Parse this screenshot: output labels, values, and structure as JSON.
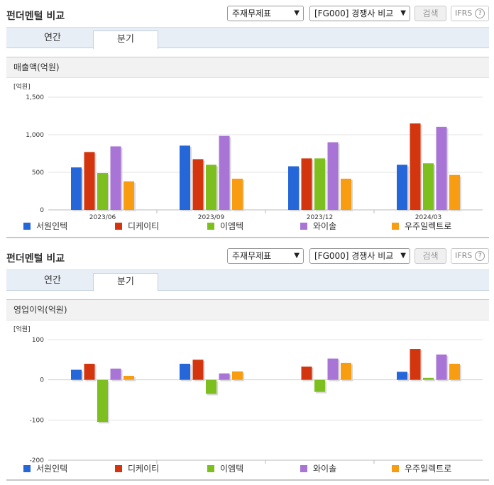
{
  "series_colors": [
    "#2566d8",
    "#d3360f",
    "#7dbf1e",
    "#a874d6",
    "#f89c12"
  ],
  "panels": [
    {
      "title": "펀더멘털 비교",
      "select1": "주재무제표",
      "select2": "[FG000] 경쟁사 비교",
      "search_label": "검색",
      "ifrs_label": "IFRS",
      "tabs": [
        "연간",
        "분기"
      ],
      "section_label": "매출액(억원)",
      "unit_label": "[억원]",
      "chart_data": {
        "type": "bar",
        "title": "매출액(억원)",
        "categories": [
          "2023/06",
          "2023/09",
          "2023/12",
          "2024/03"
        ],
        "series": [
          {
            "name": "서원인텍",
            "values": [
              565,
              855,
              580,
              600
            ]
          },
          {
            "name": "디케이티",
            "values": [
              770,
              675,
              685,
              1150
            ]
          },
          {
            "name": "이엠텍",
            "values": [
              490,
              600,
              685,
              620
            ]
          },
          {
            "name": "와이솔",
            "values": [
              845,
              985,
              900,
              1105
            ]
          },
          {
            "name": "우주일렉트로",
            "values": [
              380,
              415,
              415,
              465
            ]
          }
        ],
        "ylim": [
          0,
          1500
        ],
        "yticks": [
          0,
          500,
          1000,
          1500
        ],
        "ytick_labels": [
          "0",
          "500",
          "1,000",
          "1,500"
        ],
        "grid": true,
        "legend": "bottom"
      }
    },
    {
      "title": "펀더멘털 비교",
      "select1": "주재무제표",
      "select2": "[FG000] 경쟁사 비교",
      "search_label": "검색",
      "ifrs_label": "IFRS",
      "tabs": [
        "연간",
        "분기"
      ],
      "section_label": "영업이익(억원)",
      "unit_label": "[억원]",
      "chart_data": {
        "type": "bar",
        "title": "영업이익(억원)",
        "categories": [
          "2023/06",
          "2023/09",
          "2023/12",
          "2024/03"
        ],
        "series": [
          {
            "name": "서원인텍",
            "values": [
              25,
              40,
              0,
              20
            ]
          },
          {
            "name": "디케이티",
            "values": [
              40,
              50,
              33,
              77
            ]
          },
          {
            "name": "이엠텍",
            "values": [
              -105,
              -35,
              -30,
              5
            ]
          },
          {
            "name": "와이솔",
            "values": [
              28,
              16,
              53,
              63
            ]
          },
          {
            "name": "우주일렉트로",
            "values": [
              10,
              21,
              42,
              40
            ]
          }
        ],
        "ylim": [
          -200,
          100
        ],
        "yticks": [
          -200,
          -100,
          0,
          100
        ],
        "ytick_labels": [
          "-200",
          "-100",
          "0",
          "100"
        ],
        "grid": true,
        "legend": "bottom"
      }
    }
  ]
}
